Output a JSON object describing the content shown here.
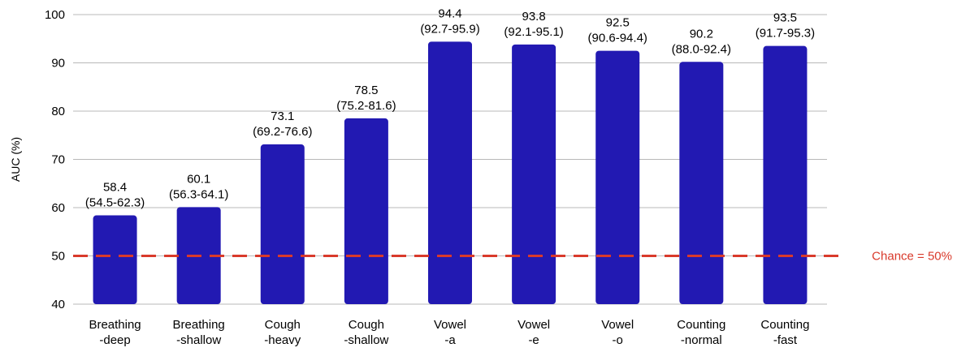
{
  "chart_data": {
    "type": "bar",
    "title": "",
    "ylabel": "AUC (%)",
    "xlabel": "",
    "ylim": [
      40,
      100
    ],
    "yticks": [
      "40",
      "50",
      "60",
      "70",
      "80",
      "90",
      "100"
    ],
    "grid": true,
    "bar_color": "#2219b2",
    "categories": [
      [
        "Breathing",
        "-deep"
      ],
      [
        "Breathing",
        "-shallow"
      ],
      [
        "Cough",
        "-heavy"
      ],
      [
        "Cough",
        "-shallow"
      ],
      [
        "Vowel",
        "-a"
      ],
      [
        "Vowel",
        "-e"
      ],
      [
        "Vowel",
        "-o"
      ],
      [
        "Counting",
        "-normal"
      ],
      [
        "Counting",
        "-fast"
      ]
    ],
    "values": [
      58.4,
      60.1,
      73.1,
      78.5,
      94.4,
      93.8,
      92.5,
      90.2,
      93.5
    ],
    "value_labels": [
      "58.4",
      "60.1",
      "73.1",
      "78.5",
      "94.4",
      "93.8",
      "92.5",
      "90.2",
      "93.5"
    ],
    "ci_labels": [
      "(54.5-62.3)",
      "(56.3-64.1)",
      "(69.2-76.6)",
      "(75.2-81.6)",
      "(92.7-95.9)",
      "(92.1-95.1)",
      "(90.6-94.4)",
      "(88.0-92.4)",
      "(91.7-95.3)"
    ],
    "reference_line": {
      "value": 50,
      "label": "Chance = 50%",
      "color": "#d93a2b",
      "style": "dashed"
    }
  }
}
